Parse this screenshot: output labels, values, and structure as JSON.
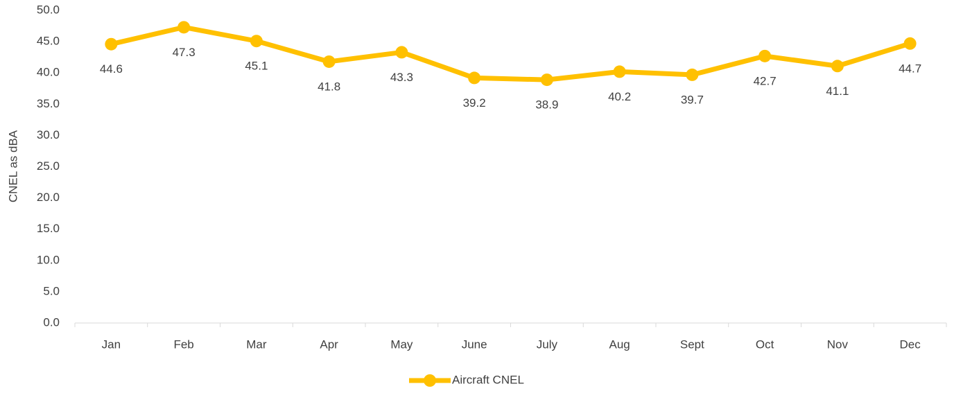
{
  "chart_data": {
    "type": "line",
    "y_label": "CNEL as dBA",
    "categories": [
      "Jan",
      "Feb",
      "Mar",
      "Apr",
      "May",
      "June",
      "July",
      "Aug",
      "Sept",
      "Oct",
      "Nov",
      "Dec"
    ],
    "series": [
      {
        "name": "Aircraft CNEL",
        "color": "#ffc000",
        "values": [
          44.6,
          47.3,
          45.1,
          41.8,
          43.3,
          39.2,
          38.9,
          40.2,
          39.7,
          42.7,
          41.1,
          44.7
        ]
      }
    ],
    "ylim": [
      0,
      50
    ],
    "yticks": [
      {
        "value": 0,
        "label": "0.0"
      },
      {
        "value": 5,
        "label": "5.0"
      },
      {
        "value": 10,
        "label": "10.0"
      },
      {
        "value": 15,
        "label": "15.0"
      },
      {
        "value": 20,
        "label": "20.0"
      },
      {
        "value": 25,
        "label": "25.0"
      },
      {
        "value": 30,
        "label": "30.0"
      },
      {
        "value": 35,
        "label": "35.0"
      },
      {
        "value": 40,
        "label": "40.0"
      },
      {
        "value": 45,
        "label": "45.0"
      },
      {
        "value": 50,
        "label": "50.0"
      }
    ],
    "grid": false,
    "legend": "bottom"
  }
}
